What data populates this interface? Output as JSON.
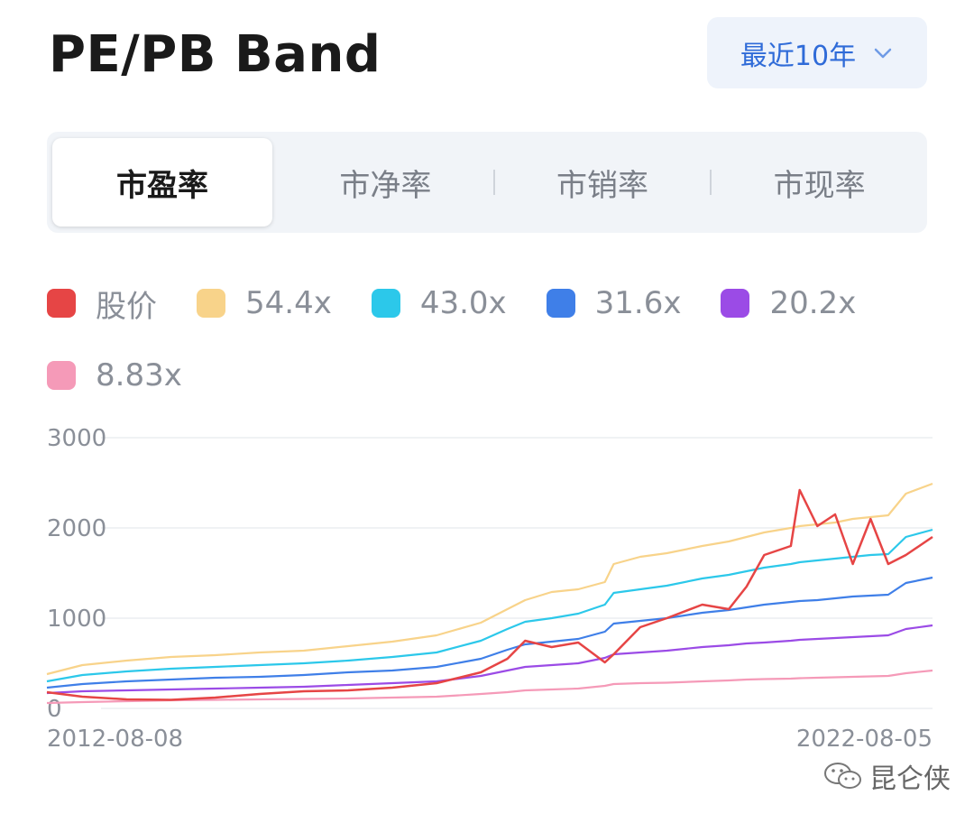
{
  "header": {
    "title": "PE/PB Band",
    "range_label": "最近10年"
  },
  "tabs": [
    {
      "label": "市盈率",
      "active": true
    },
    {
      "label": "市净率",
      "active": false
    },
    {
      "label": "市销率",
      "active": false
    },
    {
      "label": "市现率",
      "active": false
    }
  ],
  "legend": [
    {
      "label": "股价",
      "color": "#e64545"
    },
    {
      "label": "54.4x",
      "color": "#f8d38a"
    },
    {
      "label": "43.0x",
      "color": "#2cc8ea"
    },
    {
      "label": "31.6x",
      "color": "#3f7fe8"
    },
    {
      "label": "20.2x",
      "color": "#9b4be6"
    },
    {
      "label": "8.83x",
      "color": "#f59ab8"
    }
  ],
  "watermark": "昆仑侠",
  "chart_data": {
    "type": "line",
    "x_start_label": "2012-08-08",
    "x_end_label": "2022-08-05",
    "x": [
      2012.6,
      2013.0,
      2013.5,
      2014.0,
      2014.5,
      2015.0,
      2015.5,
      2016.0,
      2016.5,
      2017.0,
      2017.5,
      2017.8,
      2018.0,
      2018.3,
      2018.6,
      2018.9,
      2019.0,
      2019.3,
      2019.6,
      2020.0,
      2020.3,
      2020.5,
      2020.7,
      2021.0,
      2021.1,
      2021.3,
      2021.5,
      2021.7,
      2021.9,
      2022.1,
      2022.3,
      2022.6
    ],
    "series": [
      {
        "name": "股价",
        "values": [
          180,
          130,
          100,
          95,
          120,
          160,
          190,
          200,
          230,
          280,
          400,
          550,
          750,
          680,
          730,
          510,
          600,
          900,
          1000,
          1150,
          1100,
          1350,
          1700,
          1800,
          2420,
          2020,
          2150,
          1600,
          2100,
          1600,
          1700,
          1900
        ]
      },
      {
        "name": "54.4x",
        "values": [
          380,
          480,
          530,
          570,
          590,
          620,
          640,
          690,
          740,
          810,
          950,
          1100,
          1200,
          1290,
          1320,
          1400,
          1600,
          1680,
          1720,
          1800,
          1850,
          1900,
          1950,
          2000,
          2020,
          2040,
          2060,
          2100,
          2120,
          2140,
          2380,
          2490
        ]
      },
      {
        "name": "43.0x",
        "values": [
          300,
          370,
          410,
          440,
          460,
          480,
          500,
          530,
          570,
          620,
          750,
          880,
          960,
          1000,
          1050,
          1150,
          1280,
          1320,
          1360,
          1440,
          1480,
          1520,
          1560,
          1600,
          1620,
          1640,
          1660,
          1680,
          1700,
          1710,
          1900,
          1980
        ]
      },
      {
        "name": "31.6x",
        "values": [
          230,
          270,
          300,
          320,
          340,
          350,
          370,
          400,
          420,
          460,
          550,
          650,
          710,
          740,
          770,
          850,
          940,
          970,
          1000,
          1060,
          1090,
          1120,
          1150,
          1180,
          1190,
          1200,
          1220,
          1240,
          1250,
          1260,
          1390,
          1450
        ]
      },
      {
        "name": "20.2x",
        "values": [
          170,
          190,
          200,
          210,
          220,
          230,
          240,
          260,
          280,
          300,
          360,
          420,
          460,
          480,
          500,
          560,
          600,
          620,
          640,
          680,
          700,
          720,
          730,
          750,
          760,
          770,
          780,
          790,
          800,
          810,
          880,
          920
        ]
      },
      {
        "name": "8.83x",
        "values": [
          60,
          70,
          80,
          90,
          95,
          100,
          105,
          110,
          120,
          130,
          160,
          180,
          200,
          210,
          220,
          250,
          270,
          280,
          285,
          300,
          310,
          320,
          325,
          330,
          335,
          340,
          345,
          350,
          355,
          360,
          390,
          420
        ]
      }
    ],
    "yticks": [
      "3000",
      "2000",
      "1000",
      "0"
    ],
    "ylim": [
      0,
      3000
    ],
    "grid": true
  }
}
